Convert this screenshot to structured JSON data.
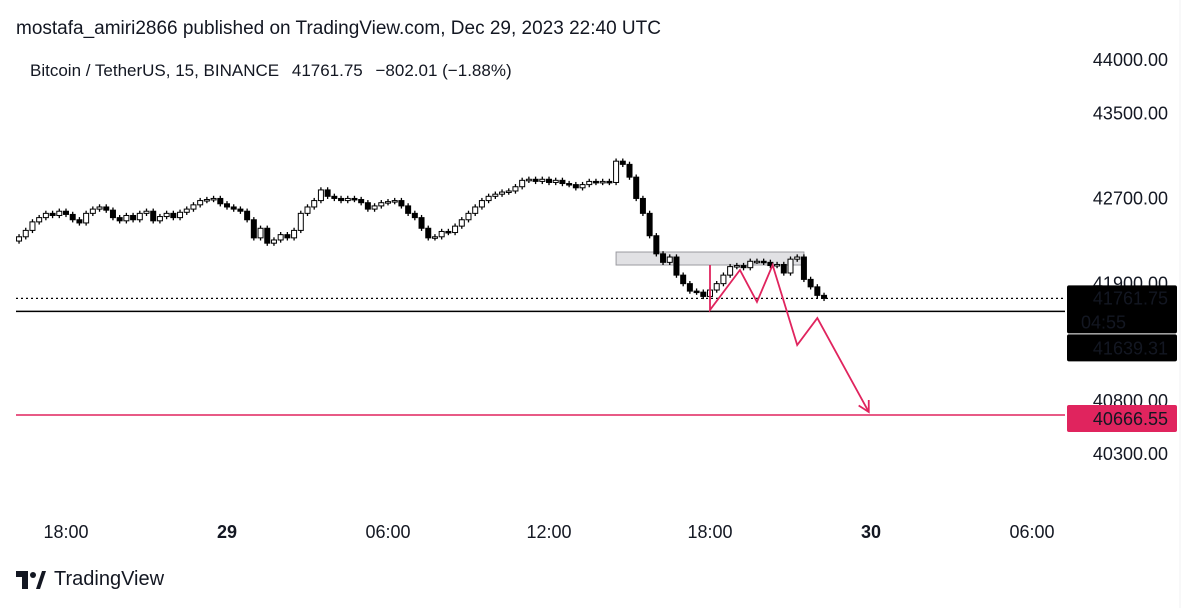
{
  "header": {
    "published": "mostafa_amiri2866 published on TradingView.com, Dec 29, 2023 22:40 UTC"
  },
  "legend": {
    "symbol": "Bitcoin / TetherUS, 15, BINANCE",
    "last": "41761.75",
    "change": "−802.01 (−1.88%)"
  },
  "brand": {
    "name": "TradingView",
    "icon": "tradingview-logo-icon"
  },
  "colors": {
    "up_fill": "#ffffff",
    "candle": "#000000",
    "drawing": "#e0245e",
    "zone": "#d9d9dd"
  },
  "chart_data": {
    "type": "candlestick",
    "interval_minutes": 15,
    "first_candle_time": "2023-12-28 16:15",
    "closes": [
      42340,
      42400,
      42480,
      42520,
      42560,
      42540,
      42580,
      42550,
      42500,
      42470,
      42560,
      42600,
      42620,
      42590,
      42520,
      42490,
      42540,
      42500,
      42560,
      42580,
      42490,
      42530,
      42560,
      42520,
      42570,
      42600,
      42640,
      42680,
      42690,
      42700,
      42650,
      42620,
      42600,
      42580,
      42500,
      42330,
      42420,
      42280,
      42310,
      42360,
      42330,
      42400,
      42560,
      42620,
      42680,
      42780,
      42720,
      42700,
      42680,
      42700,
      42690,
      42660,
      42600,
      42630,
      42660,
      42670,
      42680,
      42630,
      42560,
      42520,
      42420,
      42330,
      42340,
      42390,
      42380,
      42440,
      42500,
      42560,
      42620,
      42680,
      42720,
      42740,
      42760,
      42770,
      42810,
      42870,
      42880,
      42860,
      42880,
      42850,
      42870,
      42840,
      42830,
      42800,
      42830,
      42860,
      42850,
      42860,
      42850,
      43050,
      43020,
      42900,
      42700,
      42560,
      42350,
      42180,
      42100,
      42150,
      41980,
      41900,
      41830,
      41820,
      41780,
      41840,
      41900,
      41980,
      42060,
      42070,
      42050,
      42110,
      42110,
      42100,
      42070,
      42080,
      42000,
      42130,
      42150,
      41940,
      41870,
      41790,
      41761.75
    ],
    "y_ticks": [
      "44000.00",
      "43500.00",
      "42700.00",
      "41900.00",
      "40800.00",
      "40300.00"
    ],
    "y_tick_values": [
      44000,
      43500,
      42700,
      41900,
      40800,
      40300
    ],
    "x_ticks": [
      {
        "label": "18:00",
        "time": "2023-12-28 18:00",
        "bold": false
      },
      {
        "label": "29",
        "time": "2023-12-29 00:00",
        "bold": true
      },
      {
        "label": "06:00",
        "time": "2023-12-29 06:00",
        "bold": false
      },
      {
        "label": "12:00",
        "time": "2023-12-29 12:00",
        "bold": false
      },
      {
        "label": "18:00",
        "time": "2023-12-29 18:00",
        "bold": false
      },
      {
        "label": "30",
        "time": "2023-12-30 00:00",
        "bold": true
      },
      {
        "label": "06:00",
        "time": "2023-12-30 06:00",
        "bold": false
      }
    ],
    "ylim": [
      40000,
      44100
    ],
    "last_price": {
      "label": "41761.75",
      "value": 41761.75,
      "countdown": "04:55"
    },
    "horizontal_lines": [
      {
        "label": "41639.31",
        "value": 41639.31,
        "color": "#000000"
      },
      {
        "label": "40666.55",
        "value": 40666.55,
        "color": "#e0245e"
      }
    ],
    "zone": {
      "start": "2023-12-29 14:30",
      "end": "2023-12-29 21:30",
      "top": 42197,
      "bottom": 42075
    },
    "zigzag": [
      {
        "time": "2023-12-29 18:00",
        "price": 42075
      },
      {
        "time": "2023-12-29 18:00",
        "price": 41653
      },
      {
        "time": "2023-12-29 19:07",
        "price": 42028
      },
      {
        "time": "2023-12-29 19:45",
        "price": 41728
      },
      {
        "time": "2023-12-29 20:20",
        "price": 42075
      },
      {
        "time": "2023-12-29 21:15",
        "price": 41324
      },
      {
        "time": "2023-12-29 22:00",
        "price": 41577
      },
      {
        "time": "2023-12-29 23:55",
        "price": 40695
      }
    ]
  }
}
